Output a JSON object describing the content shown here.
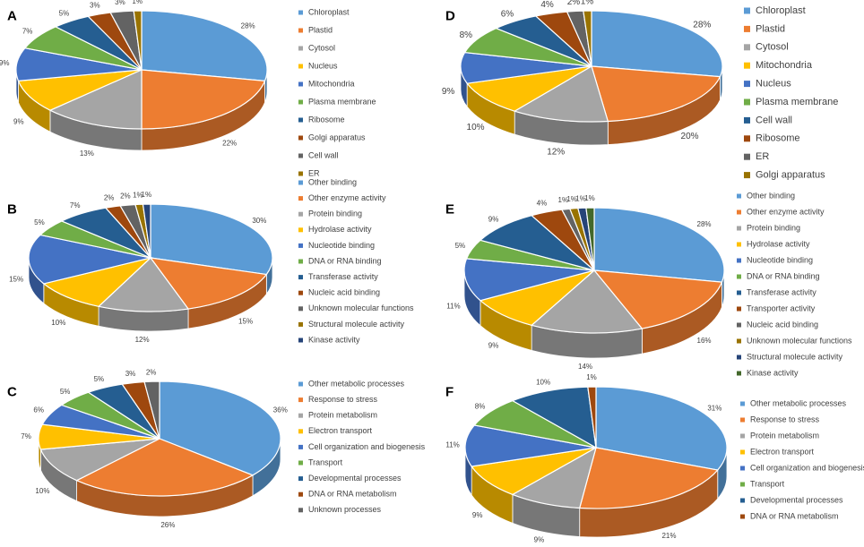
{
  "colors": {
    "palette": [
      "#5B9BD5",
      "#ED7D31",
      "#A5A5A5",
      "#FFC000",
      "#4472C4",
      "#70AD47",
      "#255E91",
      "#9E480E",
      "#636363",
      "#997300",
      "#264478",
      "#43682B"
    ],
    "label": "#404040",
    "panel_letter": "#000000"
  },
  "chart_data": [
    {
      "panel": "A",
      "type": "pie",
      "title": "",
      "categories": [
        "Chloroplast",
        "Plastid",
        "Cytosol",
        "Nucleus",
        "Mitochondria",
        "Plasma membrane",
        "Ribosome",
        "Golgi apparatus",
        "Cell wall",
        "ER"
      ],
      "values": [
        28,
        22,
        13,
        9,
        9,
        7,
        5,
        3,
        3,
        1
      ],
      "labels": [
        "28%",
        "22%",
        "13%",
        "9%",
        "9%",
        "7%",
        "5%",
        "3%",
        "3%",
        "1%"
      ],
      "legend": "right"
    },
    {
      "panel": "B",
      "type": "pie",
      "title": "",
      "categories": [
        "Other binding",
        "Other enzyme activity",
        "Protein binding",
        "Hydrolase activity",
        "Nucleotide binding",
        "DNA or RNA binding",
        "Transferase activity",
        "Nucleic acid binding",
        "Unknown molecular functions",
        "Structural molecule activity",
        "Kinase activity"
      ],
      "values": [
        30,
        15,
        12,
        10,
        15,
        5,
        7,
        2,
        2,
        1,
        1
      ],
      "labels": [
        "30%",
        "15%",
        "12%",
        "10%",
        "15%",
        "5%",
        "7%",
        "2%",
        "2%",
        "1%",
        "1%"
      ],
      "legend": "right"
    },
    {
      "panel": "C",
      "type": "pie",
      "title": "",
      "categories": [
        "Other metabolic processes",
        "Response to stress",
        "Protein metabolism",
        "Electron transport",
        "Cell organization and biogenesis",
        "Transport",
        "Developmental processes",
        "DNA or RNA metabolism",
        "Unknown processes"
      ],
      "values": [
        36,
        26,
        10,
        7,
        6,
        5,
        5,
        3,
        2
      ],
      "labels": [
        "36%",
        "26%",
        "10%",
        "7%",
        "6%",
        "5%",
        "5%",
        "3%",
        "2%"
      ],
      "legend": "right"
    },
    {
      "panel": "D",
      "type": "pie",
      "title": "",
      "categories": [
        "Chloroplast",
        "Plastid",
        "Cytosol",
        "Mitochondria",
        "Nucleus",
        "Plasma membrane",
        "Cell wall",
        "Ribosome",
        "ER",
        "Golgi apparatus"
      ],
      "values": [
        28,
        20,
        12,
        10,
        9,
        8,
        6,
        4,
        2,
        1
      ],
      "labels": [
        "28%",
        "20%",
        "12%",
        "10%",
        "9%",
        "8%",
        "6%",
        "4%",
        "2%",
        "1%"
      ],
      "legend": "right"
    },
    {
      "panel": "E",
      "type": "pie",
      "title": "",
      "categories": [
        "Other binding",
        "Other enzyme activity",
        "Protein binding",
        "Hydrolase activity",
        "Nucleotide binding",
        "DNA or RNA binding",
        "Transferase activity",
        "Transporter activity",
        "Nucleic acid binding",
        "Unknown molecular functions",
        "Structural molecule activity",
        "Kinase activity"
      ],
      "values": [
        28,
        16,
        14,
        9,
        11,
        5,
        9,
        4,
        1,
        1,
        1,
        1
      ],
      "labels": [
        "28%",
        "16%",
        "14%",
        "9%",
        "11%",
        "5%",
        "9%",
        "4%",
        "1%",
        "1%",
        "1%",
        "1%"
      ],
      "legend": "right"
    },
    {
      "panel": "F",
      "type": "pie",
      "title": "",
      "categories": [
        "Other metabolic processes",
        "Response to stress",
        "Protein metabolism",
        "Electron transport",
        "Cell organization and biogenesis",
        "Transport",
        "Developmental processes",
        "DNA or RNA metabolism"
      ],
      "values": [
        31,
        21,
        9,
        9,
        11,
        8,
        10,
        1
      ],
      "labels": [
        "31%",
        "21%",
        "9%",
        "9%",
        "11%",
        "8%",
        "10%",
        "1%"
      ],
      "legend": "right"
    }
  ]
}
